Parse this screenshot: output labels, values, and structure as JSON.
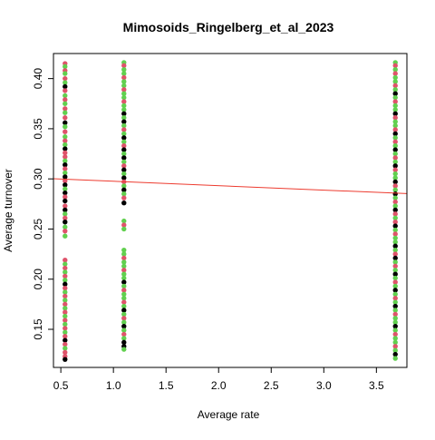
{
  "chart_data": {
    "type": "scatter",
    "title": "Mimosoids_Ringelberg_et_al_2023",
    "xlabel": "Average rate",
    "ylabel": "Average turnover",
    "xlim": [
      0.43,
      3.79
    ],
    "ylim": [
      0.112,
      0.425
    ],
    "x_ticks": [
      0.5,
      1.0,
      1.5,
      2.0,
      2.5,
      3.0,
      3.5
    ],
    "x_tick_labels": [
      "0.5",
      "1.0",
      "1.5",
      "2.0",
      "2.5",
      "3.0",
      "3.5"
    ],
    "y_ticks": [
      0.15,
      0.2,
      0.25,
      0.3,
      0.35,
      0.4
    ],
    "y_tick_labels": [
      "0.15",
      "0.20",
      "0.25",
      "0.30",
      "0.35",
      "0.40"
    ],
    "grid": false,
    "legend": "none",
    "regression_line": {
      "x": [
        0.43,
        3.79
      ],
      "y": [
        0.3002,
        0.2853
      ],
      "color": "#ed3b2f"
    },
    "series_colors": [
      "#000000",
      "#df536b",
      "#61d04f"
    ],
    "groups": [
      {
        "x": 0.54,
        "points": [
          {
            "y": 0.415,
            "c": 1
          },
          {
            "y": 0.412,
            "c": 2
          },
          {
            "y": 0.408,
            "c": 1
          },
          {
            "y": 0.405,
            "c": 2
          },
          {
            "y": 0.4,
            "c": 1
          },
          {
            "y": 0.396,
            "c": 2
          },
          {
            "y": 0.392,
            "c": 0
          },
          {
            "y": 0.388,
            "c": 1
          },
          {
            "y": 0.383,
            "c": 2
          },
          {
            "y": 0.379,
            "c": 1
          },
          {
            "y": 0.375,
            "c": 2
          },
          {
            "y": 0.37,
            "c": 1
          },
          {
            "y": 0.366,
            "c": 2
          },
          {
            "y": 0.361,
            "c": 1
          },
          {
            "y": 0.356,
            "c": 0
          },
          {
            "y": 0.352,
            "c": 2
          },
          {
            "y": 0.347,
            "c": 1
          },
          {
            "y": 0.342,
            "c": 2
          },
          {
            "y": 0.338,
            "c": 1
          },
          {
            "y": 0.334,
            "c": 2
          },
          {
            "y": 0.33,
            "c": 0
          },
          {
            "y": 0.326,
            "c": 1
          },
          {
            "y": 0.322,
            "c": 1
          },
          {
            "y": 0.318,
            "c": 2
          },
          {
            "y": 0.314,
            "c": 0
          },
          {
            "y": 0.31,
            "c": 1
          },
          {
            "y": 0.306,
            "c": 2
          },
          {
            "y": 0.302,
            "c": 0
          },
          {
            "y": 0.298,
            "c": 1
          },
          {
            "y": 0.294,
            "c": 0
          },
          {
            "y": 0.29,
            "c": 2
          },
          {
            "y": 0.286,
            "c": 0
          },
          {
            "y": 0.282,
            "c": 1
          },
          {
            "y": 0.278,
            "c": 0
          },
          {
            "y": 0.273,
            "c": 1
          },
          {
            "y": 0.269,
            "c": 0
          },
          {
            "y": 0.265,
            "c": 2
          },
          {
            "y": 0.261,
            "c": 1
          },
          {
            "y": 0.257,
            "c": 0
          },
          {
            "y": 0.252,
            "c": 2
          },
          {
            "y": 0.248,
            "c": 1
          },
          {
            "y": 0.243,
            "c": 2
          },
          {
            "y": 0.219,
            "c": 1
          },
          {
            "y": 0.215,
            "c": 2
          },
          {
            "y": 0.211,
            "c": 1
          },
          {
            "y": 0.207,
            "c": 2
          },
          {
            "y": 0.203,
            "c": 1
          },
          {
            "y": 0.199,
            "c": 2
          },
          {
            "y": 0.195,
            "c": 0
          },
          {
            "y": 0.191,
            "c": 1
          },
          {
            "y": 0.187,
            "c": 2
          },
          {
            "y": 0.183,
            "c": 1
          },
          {
            "y": 0.179,
            "c": 2
          },
          {
            "y": 0.175,
            "c": 1
          },
          {
            "y": 0.171,
            "c": 2
          },
          {
            "y": 0.167,
            "c": 1
          },
          {
            "y": 0.163,
            "c": 2
          },
          {
            "y": 0.159,
            "c": 1
          },
          {
            "y": 0.155,
            "c": 2
          },
          {
            "y": 0.151,
            "c": 1
          },
          {
            "y": 0.147,
            "c": 2
          },
          {
            "y": 0.143,
            "c": 1
          },
          {
            "y": 0.139,
            "c": 0
          },
          {
            "y": 0.135,
            "c": 1
          },
          {
            "y": 0.131,
            "c": 2
          },
          {
            "y": 0.127,
            "c": 1
          },
          {
            "y": 0.123,
            "c": 1
          },
          {
            "y": 0.12,
            "c": 0
          }
        ]
      },
      {
        "x": 1.1,
        "points": [
          {
            "y": 0.416,
            "c": 2
          },
          {
            "y": 0.413,
            "c": 1
          },
          {
            "y": 0.409,
            "c": 2
          },
          {
            "y": 0.405,
            "c": 2
          },
          {
            "y": 0.401,
            "c": 1
          },
          {
            "y": 0.397,
            "c": 2
          },
          {
            "y": 0.393,
            "c": 2
          },
          {
            "y": 0.389,
            "c": 1
          },
          {
            "y": 0.385,
            "c": 2
          },
          {
            "y": 0.381,
            "c": 2
          },
          {
            "y": 0.377,
            "c": 1
          },
          {
            "y": 0.373,
            "c": 2
          },
          {
            "y": 0.369,
            "c": 2
          },
          {
            "y": 0.365,
            "c": 0
          },
          {
            "y": 0.361,
            "c": 2
          },
          {
            "y": 0.357,
            "c": 0
          },
          {
            "y": 0.353,
            "c": 2
          },
          {
            "y": 0.349,
            "c": 1
          },
          {
            "y": 0.345,
            "c": 2
          },
          {
            "y": 0.341,
            "c": 0
          },
          {
            "y": 0.337,
            "c": 2
          },
          {
            "y": 0.333,
            "c": 1
          },
          {
            "y": 0.329,
            "c": 0
          },
          {
            "y": 0.325,
            "c": 2
          },
          {
            "y": 0.321,
            "c": 0
          },
          {
            "y": 0.317,
            "c": 2
          },
          {
            "y": 0.313,
            "c": 1
          },
          {
            "y": 0.309,
            "c": 0
          },
          {
            "y": 0.305,
            "c": 2
          },
          {
            "y": 0.301,
            "c": 0
          },
          {
            "y": 0.297,
            "c": 1
          },
          {
            "y": 0.293,
            "c": 2
          },
          {
            "y": 0.289,
            "c": 0
          },
          {
            "y": 0.285,
            "c": 2
          },
          {
            "y": 0.281,
            "c": 1
          },
          {
            "y": 0.276,
            "c": 0
          },
          {
            "y": 0.258,
            "c": 2
          },
          {
            "y": 0.254,
            "c": 1
          },
          {
            "y": 0.25,
            "c": 2
          },
          {
            "y": 0.229,
            "c": 2
          },
          {
            "y": 0.225,
            "c": 2
          },
          {
            "y": 0.221,
            "c": 1
          },
          {
            "y": 0.217,
            "c": 2
          },
          {
            "y": 0.213,
            "c": 2
          },
          {
            "y": 0.209,
            "c": 1
          },
          {
            "y": 0.205,
            "c": 2
          },
          {
            "y": 0.201,
            "c": 2
          },
          {
            "y": 0.197,
            "c": 0
          },
          {
            "y": 0.193,
            "c": 2
          },
          {
            "y": 0.189,
            "c": 1
          },
          {
            "y": 0.185,
            "c": 2
          },
          {
            "y": 0.181,
            "c": 2
          },
          {
            "y": 0.177,
            "c": 1
          },
          {
            "y": 0.173,
            "c": 2
          },
          {
            "y": 0.169,
            "c": 0
          },
          {
            "y": 0.165,
            "c": 2
          },
          {
            "y": 0.161,
            "c": 1
          },
          {
            "y": 0.157,
            "c": 2
          },
          {
            "y": 0.153,
            "c": 0
          },
          {
            "y": 0.149,
            "c": 2
          },
          {
            "y": 0.145,
            "c": 1
          },
          {
            "y": 0.141,
            "c": 2
          },
          {
            "y": 0.137,
            "c": 0
          },
          {
            "y": 0.133,
            "c": 0
          },
          {
            "y": 0.13,
            "c": 2
          }
        ]
      },
      {
        "x": 3.68,
        "points": [
          {
            "y": 0.416,
            "c": 2
          },
          {
            "y": 0.413,
            "c": 1
          },
          {
            "y": 0.409,
            "c": 2
          },
          {
            "y": 0.405,
            "c": 1
          },
          {
            "y": 0.401,
            "c": 2
          },
          {
            "y": 0.397,
            "c": 2
          },
          {
            "y": 0.393,
            "c": 1
          },
          {
            "y": 0.389,
            "c": 2
          },
          {
            "y": 0.385,
            "c": 0
          },
          {
            "y": 0.381,
            "c": 2
          },
          {
            "y": 0.377,
            "c": 1
          },
          {
            "y": 0.373,
            "c": 2
          },
          {
            "y": 0.369,
            "c": 2
          },
          {
            "y": 0.365,
            "c": 0
          },
          {
            "y": 0.361,
            "c": 1
          },
          {
            "y": 0.357,
            "c": 2
          },
          {
            "y": 0.353,
            "c": 2
          },
          {
            "y": 0.349,
            "c": 1
          },
          {
            "y": 0.345,
            "c": 0
          },
          {
            "y": 0.341,
            "c": 2
          },
          {
            "y": 0.337,
            "c": 1
          },
          {
            "y": 0.333,
            "c": 2
          },
          {
            "y": 0.329,
            "c": 0
          },
          {
            "y": 0.325,
            "c": 2
          },
          {
            "y": 0.321,
            "c": 1
          },
          {
            "y": 0.317,
            "c": 2
          },
          {
            "y": 0.313,
            "c": 0
          },
          {
            "y": 0.309,
            "c": 1
          },
          {
            "y": 0.305,
            "c": 2
          },
          {
            "y": 0.301,
            "c": 2
          },
          {
            "y": 0.297,
            "c": 0
          },
          {
            "y": 0.293,
            "c": 1
          },
          {
            "y": 0.289,
            "c": 2
          },
          {
            "y": 0.285,
            "c": 0
          },
          {
            "y": 0.281,
            "c": 2
          },
          {
            "y": 0.277,
            "c": 1
          },
          {
            "y": 0.273,
            "c": 2
          },
          {
            "y": 0.269,
            "c": 0
          },
          {
            "y": 0.265,
            "c": 1
          },
          {
            "y": 0.261,
            "c": 2
          },
          {
            "y": 0.257,
            "c": 1
          },
          {
            "y": 0.253,
            "c": 0
          },
          {
            "y": 0.249,
            "c": 2
          },
          {
            "y": 0.245,
            "c": 1
          },
          {
            "y": 0.241,
            "c": 2
          },
          {
            "y": 0.237,
            "c": 2
          },
          {
            "y": 0.233,
            "c": 0
          },
          {
            "y": 0.229,
            "c": 2
          },
          {
            "y": 0.225,
            "c": 1
          },
          {
            "y": 0.221,
            "c": 0
          },
          {
            "y": 0.217,
            "c": 2
          },
          {
            "y": 0.213,
            "c": 1
          },
          {
            "y": 0.209,
            "c": 2
          },
          {
            "y": 0.205,
            "c": 0
          },
          {
            "y": 0.201,
            "c": 2
          },
          {
            "y": 0.197,
            "c": 1
          },
          {
            "y": 0.193,
            "c": 2
          },
          {
            "y": 0.189,
            "c": 0
          },
          {
            "y": 0.185,
            "c": 2
          },
          {
            "y": 0.181,
            "c": 1
          },
          {
            "y": 0.177,
            "c": 2
          },
          {
            "y": 0.173,
            "c": 0
          },
          {
            "y": 0.169,
            "c": 2
          },
          {
            "y": 0.165,
            "c": 1
          },
          {
            "y": 0.161,
            "c": 2
          },
          {
            "y": 0.157,
            "c": 2
          },
          {
            "y": 0.153,
            "c": 0
          },
          {
            "y": 0.149,
            "c": 2
          },
          {
            "y": 0.145,
            "c": 1
          },
          {
            "y": 0.141,
            "c": 2
          },
          {
            "y": 0.137,
            "c": 2
          },
          {
            "y": 0.133,
            "c": 1
          },
          {
            "y": 0.129,
            "c": 2
          },
          {
            "y": 0.125,
            "c": 0
          },
          {
            "y": 0.121,
            "c": 2
          }
        ]
      }
    ]
  }
}
